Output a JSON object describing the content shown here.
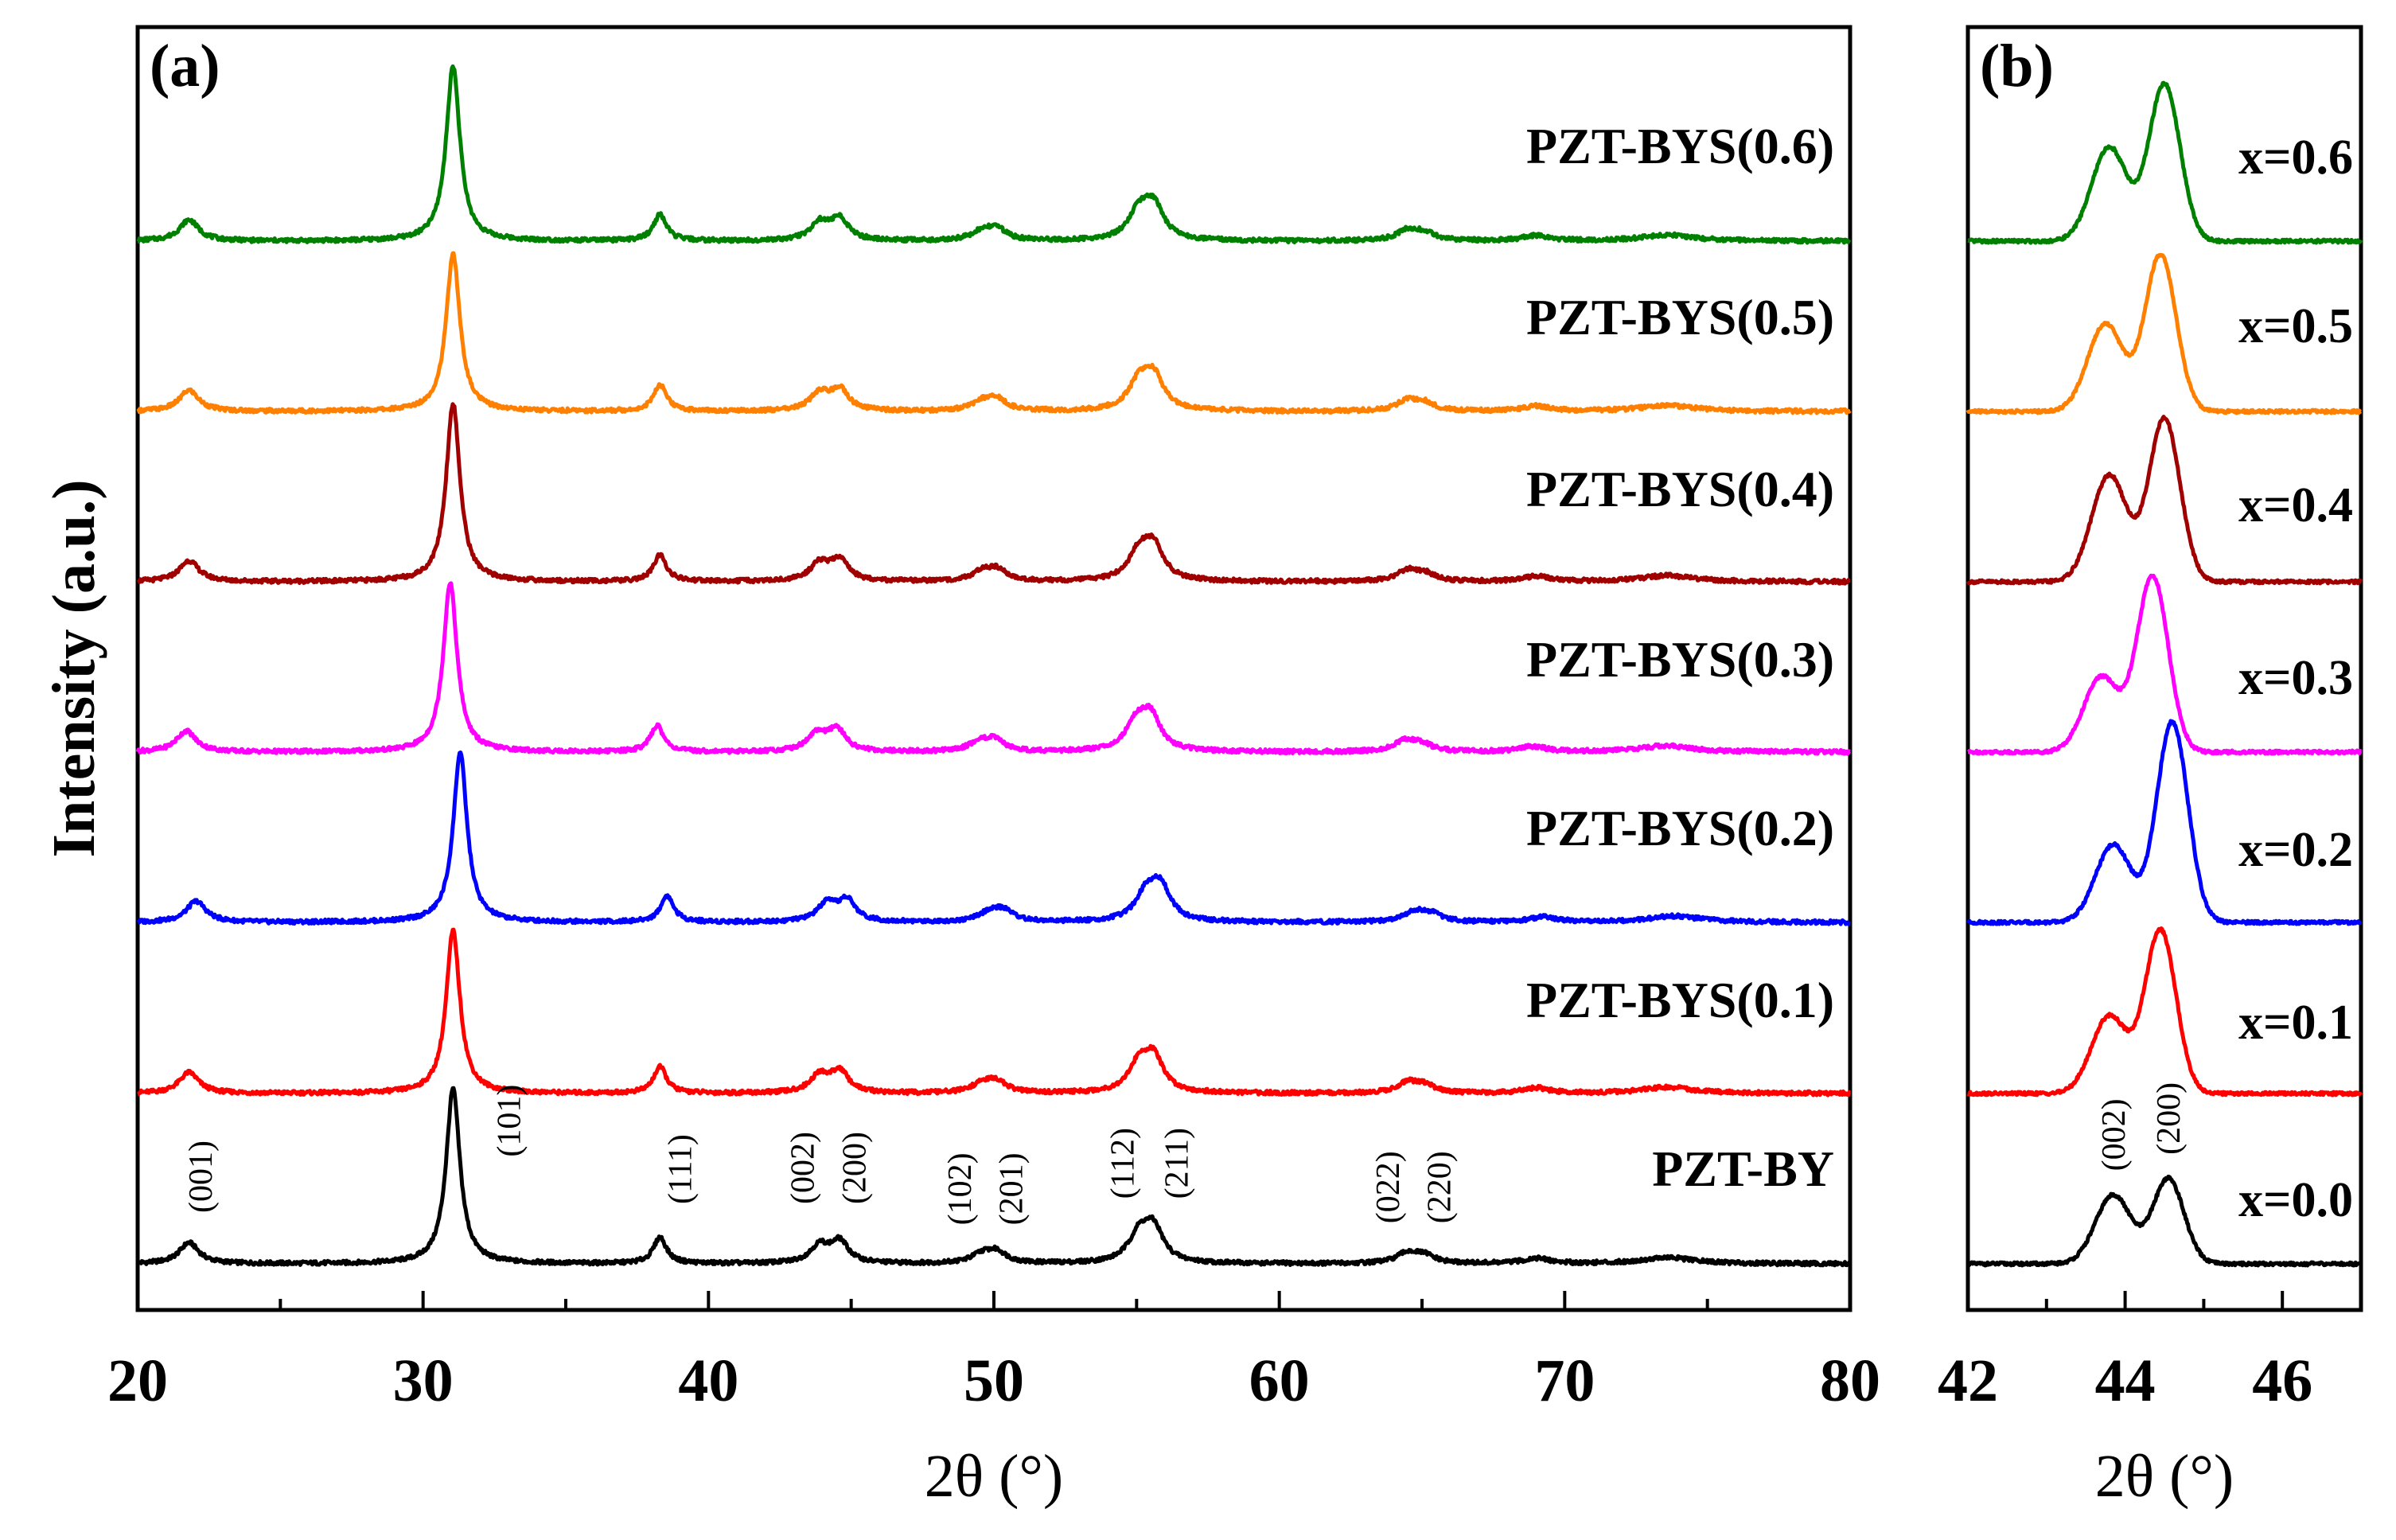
{
  "chart_data": [
    {
      "type": "line",
      "panel": "(a)",
      "xlabel": "2θ (°)",
      "ylabel": "Intensity (a.u.)",
      "xlim": [
        20,
        80
      ],
      "x_ticks": [
        20,
        30,
        40,
        50,
        60,
        70,
        80
      ],
      "ylim": [
        0,
        7.5
      ],
      "series": [
        {
          "name": "PZT-BY",
          "label": "PZT-BY",
          "color": "#000000",
          "offset": 0,
          "shift": 0,
          "scale": 1.0
        },
        {
          "name": "PZT-BYS(0.1)",
          "label": "PZT-BYS(0.1)",
          "color": "#ff0000",
          "offset": 1,
          "shift": 0,
          "scale": 0.93
        },
        {
          "name": "PZT-BYS(0.2)",
          "label": "PZT-BYS(0.2)",
          "color": "#0000ff",
          "offset": 2,
          "shift": 0.25,
          "scale": 0.97
        },
        {
          "name": "PZT-BYS(0.3)",
          "label": "PZT-BYS(0.3)",
          "color": "#ff00ff",
          "offset": 3,
          "shift": -0.1,
          "scale": 0.97
        },
        {
          "name": "PZT-BYS(0.4)",
          "label": "PZT-BYS(0.4)",
          "color": "#a00000",
          "offset": 4,
          "shift": 0,
          "scale": 1.02
        },
        {
          "name": "PZT-BYS(0.5)",
          "label": "PZT-BYS(0.5)",
          "color": "#ff8000",
          "offset": 5,
          "shift": 0,
          "scale": 0.9
        },
        {
          "name": "PZT-BYS(0.6)",
          "label": "PZT-BYS(0.6)",
          "color": "#008000",
          "offset": 6,
          "shift": 0,
          "scale": 1.0
        }
      ],
      "peaks": [
        {
          "pos": 21.8,
          "height": 0.12,
          "width": 0.45
        },
        {
          "pos": 31.05,
          "height": 1.0,
          "width": 0.32
        },
        {
          "pos": 38.3,
          "height": 0.15,
          "width": 0.3
        },
        {
          "pos": 43.9,
          "height": 0.1,
          "width": 0.45
        },
        {
          "pos": 44.6,
          "height": 0.12,
          "width": 0.4
        },
        {
          "pos": 49.6,
          "height": 0.05,
          "width": 0.5
        },
        {
          "pos": 50.1,
          "height": 0.06,
          "width": 0.45
        },
        {
          "pos": 55.1,
          "height": 0.16,
          "width": 0.5
        },
        {
          "pos": 55.6,
          "height": 0.18,
          "width": 0.45
        },
        {
          "pos": 64.5,
          "height": 0.06,
          "width": 0.5
        },
        {
          "pos": 65.1,
          "height": 0.04,
          "width": 0.45
        },
        {
          "pos": 69.0,
          "height": 0.03,
          "width": 0.6
        },
        {
          "pos": 73.6,
          "height": 0.035,
          "width": 1.2
        }
      ],
      "annotations": [
        {
          "text": "(001)",
          "x": 22.2,
          "y": 0.2
        },
        {
          "text": "(101)",
          "x": 33.0,
          "y": 0.52
        },
        {
          "text": "(111)",
          "x": 39.0,
          "y": 0.25
        },
        {
          "text": "(002)",
          "x": 43.3,
          "y": 0.25
        },
        {
          "text": "(200)",
          "x": 45.1,
          "y": 0.25
        },
        {
          "text": "(102)",
          "x": 48.8,
          "y": 0.13
        },
        {
          "text": "(201)",
          "x": 50.6,
          "y": 0.13
        },
        {
          "text": "(112)",
          "x": 54.5,
          "y": 0.28
        },
        {
          "text": "(211)",
          "x": 56.4,
          "y": 0.28
        },
        {
          "text": "(022)",
          "x": 63.8,
          "y": 0.14
        },
        {
          "text": "(220)",
          "x": 65.6,
          "y": 0.14
        }
      ]
    },
    {
      "type": "line",
      "panel": "(b)",
      "xlabel": "2θ (°)",
      "xlim": [
        42,
        47
      ],
      "x_ticks": [
        42,
        44,
        46
      ],
      "series": [
        {
          "name": "x=0.0",
          "label": "x=0.0",
          "color": "#000000",
          "offset": 0,
          "p002": 43.85,
          "h002": 0.55,
          "p200": 44.55,
          "h200": 0.68
        },
        {
          "name": "x=0.1",
          "label": "x=0.1",
          "color": "#ff0000",
          "offset": 1,
          "p002": 43.8,
          "h002": 0.62,
          "p200": 44.45,
          "h200": 1.3
        },
        {
          "name": "x=0.2",
          "label": "x=0.2",
          "color": "#0000ff",
          "offset": 2,
          "p002": 43.85,
          "h002": 0.62,
          "p200": 44.6,
          "h200": 1.6
        },
        {
          "name": "x=0.3",
          "label": "x=0.3",
          "color": "#ff00ff",
          "offset": 3,
          "p002": 43.7,
          "h002": 0.6,
          "p200": 44.35,
          "h200": 1.4
        },
        {
          "name": "x=0.4",
          "label": "x=0.4",
          "color": "#a00000",
          "offset": 4,
          "p002": 43.8,
          "h002": 0.85,
          "p200": 44.5,
          "h200": 1.3
        },
        {
          "name": "x=0.5",
          "label": "x=0.5",
          "color": "#ff8000",
          "offset": 5,
          "p002": 43.75,
          "h002": 0.7,
          "p200": 44.45,
          "h200": 1.25
        },
        {
          "name": "x=0.6",
          "label": "x=0.6",
          "color": "#008000",
          "offset": 6,
          "p002": 43.8,
          "h002": 0.75,
          "p200": 44.5,
          "h200": 1.25
        }
      ],
      "annotations": [
        {
          "text": "(002)",
          "x": 43.85
        },
        {
          "text": "(200)",
          "x": 44.55
        }
      ]
    }
  ]
}
